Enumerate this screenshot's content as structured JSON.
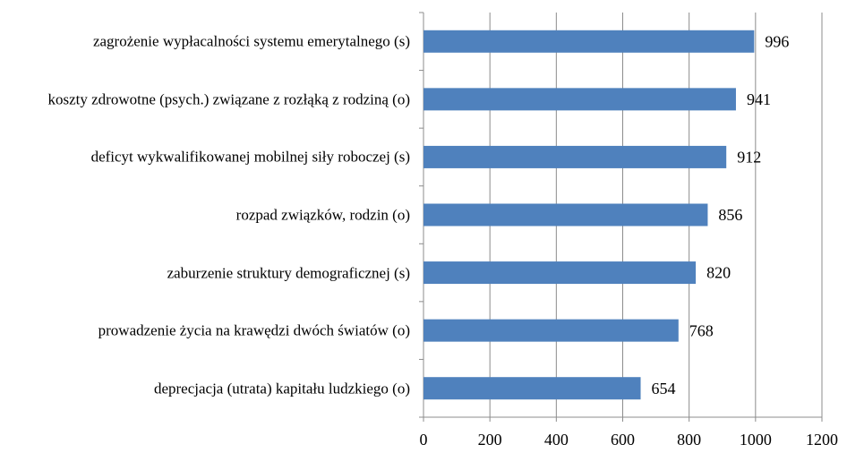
{
  "chart_data": {
    "type": "bar",
    "categories": [
      "zagrożenie wypłacalności systemu emerytalnego (s)",
      "koszty zdrowotne (psych.) związane z rozłąką z rodziną (o)",
      "deficyt wykwalifikowanej mobilnej siły roboczej (s)",
      "rozpad związków, rodzin (o)",
      "zaburzenie struktury demograficznej (s)",
      "prowadzenie życia na krawędzi dwóch światów (o)",
      "deprecjacja (utrata) kapitału ludzkiego (o)"
    ],
    "values": [
      996,
      941,
      912,
      856,
      820,
      768,
      654
    ],
    "color": "#4f81bd",
    "xlim": [
      0,
      1200
    ],
    "xticks": [
      0,
      200,
      400,
      600,
      800,
      1000,
      1200
    ],
    "grid": true
  }
}
